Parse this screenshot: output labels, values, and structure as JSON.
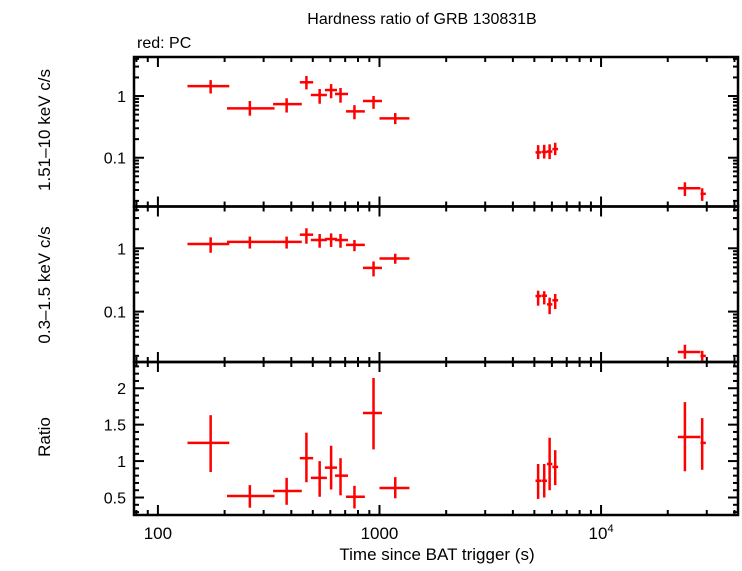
{
  "title": "Hardness ratio of GRB 130831B",
  "legend_note": "red: PC",
  "series_color": "#ff0000",
  "chart_data": [
    {
      "type": "scatter",
      "ylabel": "1.51–10 keV c/s",
      "xscale": "log",
      "yscale": "log",
      "xlim": [
        78,
        41500
      ],
      "ylim": [
        0.0162,
        4.29
      ],
      "yticks": [
        {
          "v": 1,
          "label": "1"
        },
        {
          "v": 0.1,
          "label": "0.1"
        }
      ],
      "errorbars": true,
      "points": [
        {
          "t": 173,
          "t_lo": 136,
          "t_hi": 210,
          "y": 1.45,
          "y_lo": 1.1,
          "y_hi": 1.81
        },
        {
          "t": 260,
          "t_lo": 205,
          "t_hi": 336,
          "y": 0.63,
          "y_lo": 0.48,
          "y_hi": 0.83
        },
        {
          "t": 381,
          "t_lo": 331,
          "t_hi": 446,
          "y": 0.74,
          "y_lo": 0.54,
          "y_hi": 0.92
        },
        {
          "t": 468,
          "t_lo": 437,
          "t_hi": 502,
          "y": 1.67,
          "y_lo": 1.28,
          "y_hi": 2.11
        },
        {
          "t": 537,
          "t_lo": 490,
          "t_hi": 579,
          "y": 1.04,
          "y_lo": 0.75,
          "y_hi": 1.3
        },
        {
          "t": 605,
          "t_lo": 567,
          "t_hi": 643,
          "y": 1.25,
          "y_lo": 0.92,
          "y_hi": 1.56
        },
        {
          "t": 667,
          "t_lo": 630,
          "t_hi": 721,
          "y": 1.08,
          "y_lo": 0.78,
          "y_hi": 1.35
        },
        {
          "t": 771,
          "t_lo": 706,
          "t_hi": 859,
          "y": 0.565,
          "y_lo": 0.42,
          "y_hi": 0.71
        },
        {
          "t": 940,
          "t_lo": 842,
          "t_hi": 1026,
          "y": 0.83,
          "y_lo": 0.62,
          "y_hi": 1.0
        },
        {
          "t": 1178,
          "t_lo": 1000,
          "t_hi": 1365,
          "y": 0.435,
          "y_lo": 0.35,
          "y_hi": 0.53
        },
        {
          "t": 5200,
          "t_lo": 5060,
          "t_hi": 5360,
          "y": 0.122,
          "y_lo": 0.095,
          "y_hi": 0.16
        },
        {
          "t": 5540,
          "t_lo": 5380,
          "t_hi": 5700,
          "y": 0.124,
          "y_lo": 0.097,
          "y_hi": 0.162
        },
        {
          "t": 5860,
          "t_lo": 5700,
          "t_hi": 6030,
          "y": 0.126,
          "y_lo": 0.095,
          "y_hi": 0.165
        },
        {
          "t": 6210,
          "t_lo": 6030,
          "t_hi": 6400,
          "y": 0.138,
          "y_lo": 0.11,
          "y_hi": 0.175
        },
        {
          "t": 23900,
          "t_lo": 22200,
          "t_hi": 28100,
          "y": 0.032,
          "y_lo": 0.024,
          "y_hi": 0.04
        },
        {
          "t": 28600,
          "t_lo": 28100,
          "t_hi": 29700,
          "y": 0.026,
          "y_lo": 0.02,
          "y_hi": 0.032
        }
      ]
    },
    {
      "type": "scatter",
      "ylabel": "0.3–1.5 keV c/s",
      "xscale": "log",
      "yscale": "log",
      "xlim": [
        78,
        41500
      ],
      "ylim": [
        0.016,
        4.57
      ],
      "yticks": [
        {
          "v": 1,
          "label": "1"
        },
        {
          "v": 0.1,
          "label": "0.1"
        }
      ],
      "errorbars": true,
      "points": [
        {
          "t": 173,
          "t_lo": 136,
          "t_hi": 210,
          "y": 1.17,
          "y_lo": 0.85,
          "y_hi": 1.49
        },
        {
          "t": 260,
          "t_lo": 205,
          "t_hi": 336,
          "y": 1.26,
          "y_lo": 0.99,
          "y_hi": 1.53
        },
        {
          "t": 381,
          "t_lo": 331,
          "t_hi": 446,
          "y": 1.26,
          "y_lo": 0.99,
          "y_hi": 1.53
        },
        {
          "t": 468,
          "t_lo": 437,
          "t_hi": 502,
          "y": 1.64,
          "y_lo": 1.18,
          "y_hi": 2.07
        },
        {
          "t": 537,
          "t_lo": 490,
          "t_hi": 579,
          "y": 1.35,
          "y_lo": 1.02,
          "y_hi": 1.68
        },
        {
          "t": 605,
          "t_lo": 567,
          "t_hi": 643,
          "y": 1.4,
          "y_lo": 1.05,
          "y_hi": 1.72
        },
        {
          "t": 667,
          "t_lo": 630,
          "t_hi": 721,
          "y": 1.35,
          "y_lo": 1.02,
          "y_hi": 1.68
        },
        {
          "t": 771,
          "t_lo": 706,
          "t_hi": 859,
          "y": 1.13,
          "y_lo": 0.9,
          "y_hi": 1.35
        },
        {
          "t": 940,
          "t_lo": 842,
          "t_hi": 1026,
          "y": 0.49,
          "y_lo": 0.36,
          "y_hi": 0.62
        },
        {
          "t": 1178,
          "t_lo": 1000,
          "t_hi": 1365,
          "y": 0.69,
          "y_lo": 0.57,
          "y_hi": 0.82
        },
        {
          "t": 5200,
          "t_lo": 5060,
          "t_hi": 5360,
          "y": 0.176,
          "y_lo": 0.124,
          "y_hi": 0.214
        },
        {
          "t": 5540,
          "t_lo": 5380,
          "t_hi": 5700,
          "y": 0.178,
          "y_lo": 0.13,
          "y_hi": 0.21
        },
        {
          "t": 5860,
          "t_lo": 5700,
          "t_hi": 6030,
          "y": 0.13,
          "y_lo": 0.091,
          "y_hi": 0.166
        },
        {
          "t": 6210,
          "t_lo": 6030,
          "t_hi": 6400,
          "y": 0.151,
          "y_lo": 0.11,
          "y_hi": 0.19
        },
        {
          "t": 23900,
          "t_lo": 22200,
          "t_hi": 28100,
          "y": 0.023,
          "y_lo": 0.018,
          "y_hi": 0.03
        },
        {
          "t": 28600,
          "t_lo": 28100,
          "t_hi": 29700,
          "y": 0.02,
          "y_lo": 0.016,
          "y_hi": 0.024
        }
      ]
    },
    {
      "type": "scatter",
      "ylabel": "Ratio",
      "xlabel": "Time since BAT trigger (s)",
      "xscale": "log",
      "yscale": "linear",
      "xlim": [
        78,
        41500
      ],
      "ylim": [
        0.26,
        2.36
      ],
      "xticks": [
        {
          "v": 100,
          "label": "100"
        },
        {
          "v": 1000,
          "label": "1000"
        },
        {
          "v": 10000,
          "label": "10",
          "sup": "4"
        }
      ],
      "yticks": [
        {
          "v": 2,
          "label": "2"
        },
        {
          "v": 1.5,
          "label": "1.5"
        },
        {
          "v": 1,
          "label": "1"
        },
        {
          "v": 0.5,
          "label": "0.5"
        }
      ],
      "errorbars": true,
      "points": [
        {
          "t": 173,
          "t_lo": 136,
          "t_hi": 210,
          "y": 1.25,
          "y_lo": 0.85,
          "y_hi": 1.63
        },
        {
          "t": 260,
          "t_lo": 205,
          "t_hi": 336,
          "y": 0.52,
          "y_lo": 0.36,
          "y_hi": 0.67
        },
        {
          "t": 381,
          "t_lo": 331,
          "t_hi": 446,
          "y": 0.59,
          "y_lo": 0.4,
          "y_hi": 0.77
        },
        {
          "t": 468,
          "t_lo": 437,
          "t_hi": 502,
          "y": 1.04,
          "y_lo": 0.71,
          "y_hi": 1.39
        },
        {
          "t": 537,
          "t_lo": 490,
          "t_hi": 579,
          "y": 0.77,
          "y_lo": 0.51,
          "y_hi": 1.0
        },
        {
          "t": 605,
          "t_lo": 567,
          "t_hi": 643,
          "y": 0.91,
          "y_lo": 0.61,
          "y_hi": 1.21
        },
        {
          "t": 667,
          "t_lo": 630,
          "t_hi": 721,
          "y": 0.8,
          "y_lo": 0.53,
          "y_hi": 1.04
        },
        {
          "t": 771,
          "t_lo": 706,
          "t_hi": 859,
          "y": 0.51,
          "y_lo": 0.35,
          "y_hi": 0.66
        },
        {
          "t": 940,
          "t_lo": 842,
          "t_hi": 1026,
          "y": 1.66,
          "y_lo": 1.16,
          "y_hi": 2.14
        },
        {
          "t": 1178,
          "t_lo": 1000,
          "t_hi": 1365,
          "y": 0.63,
          "y_lo": 0.49,
          "y_hi": 0.78
        },
        {
          "t": 5200,
          "t_lo": 5060,
          "t_hi": 5360,
          "y": 0.73,
          "y_lo": 0.48,
          "y_hi": 0.96
        },
        {
          "t": 5540,
          "t_lo": 5380,
          "t_hi": 5700,
          "y": 0.73,
          "y_lo": 0.5,
          "y_hi": 0.96
        },
        {
          "t": 5860,
          "t_lo": 5700,
          "t_hi": 6030,
          "y": 0.96,
          "y_lo": 0.6,
          "y_hi": 1.32
        },
        {
          "t": 6210,
          "t_lo": 6030,
          "t_hi": 6400,
          "y": 0.92,
          "y_lo": 0.67,
          "y_hi": 1.15
        },
        {
          "t": 23900,
          "t_lo": 22200,
          "t_hi": 28100,
          "y": 1.33,
          "y_lo": 0.86,
          "y_hi": 1.81
        },
        {
          "t": 28600,
          "t_lo": 28100,
          "t_hi": 29700,
          "y": 1.25,
          "y_lo": 0.88,
          "y_hi": 1.59
        }
      ]
    }
  ]
}
